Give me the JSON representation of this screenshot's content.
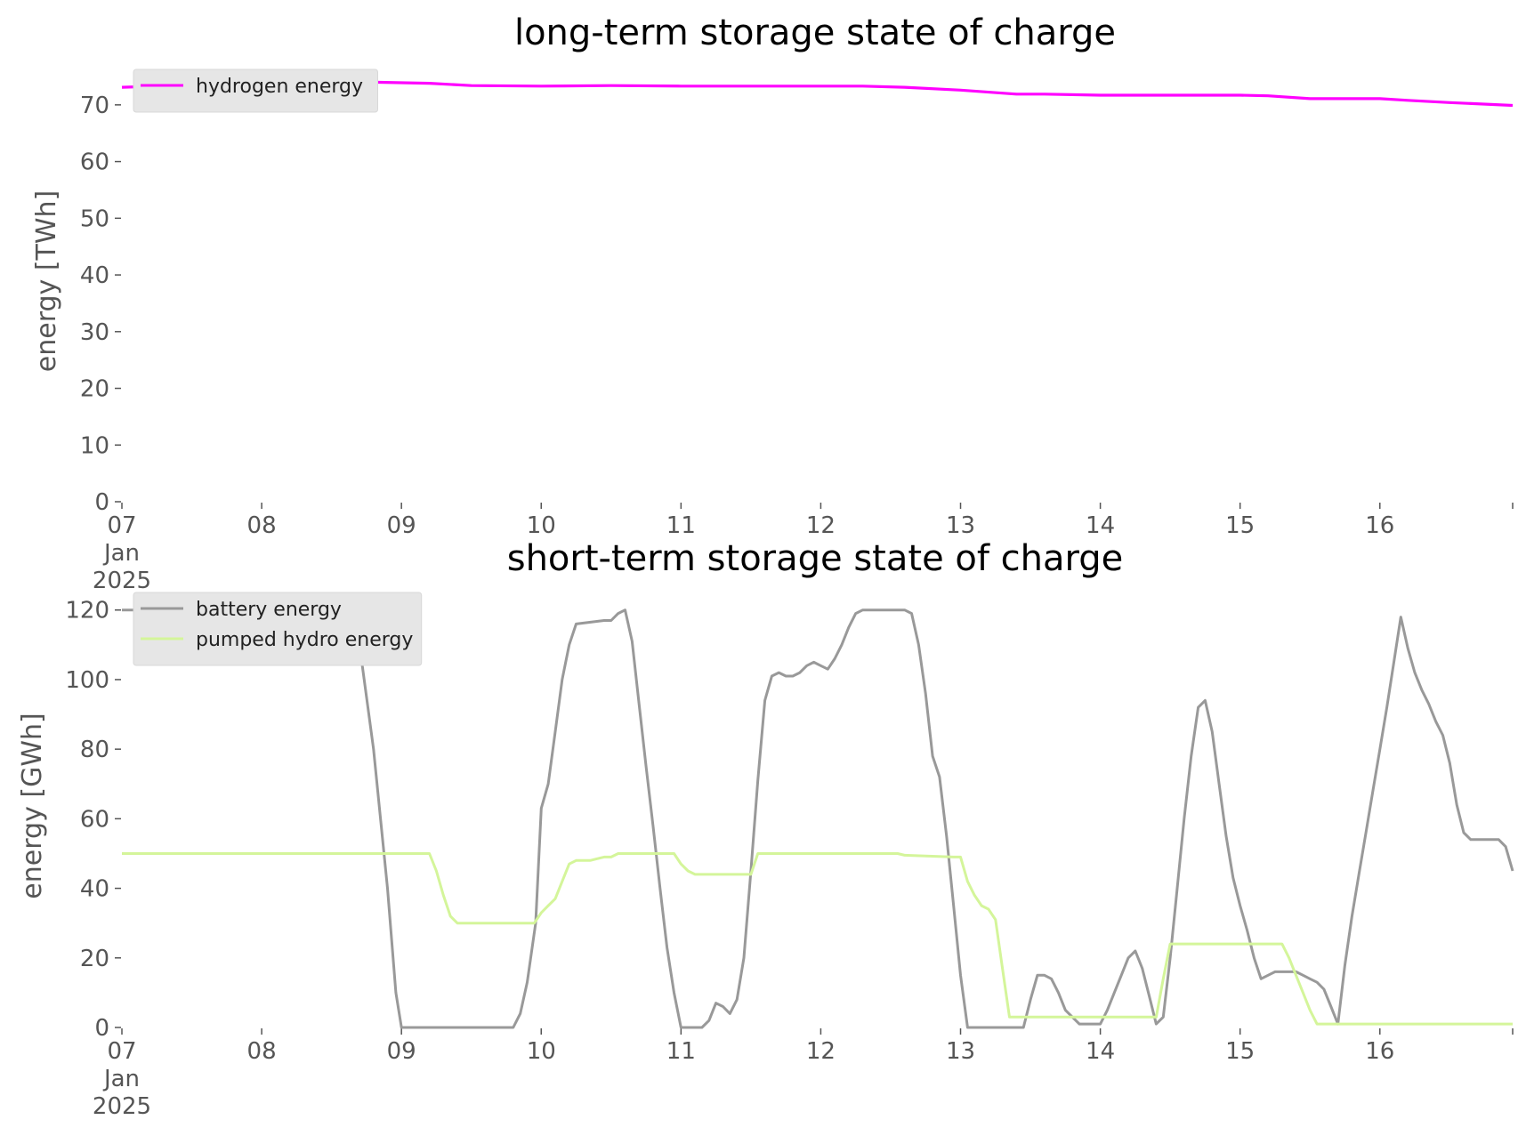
{
  "chart_data": [
    {
      "type": "line",
      "title": "long-term storage state of charge",
      "xlabel": "",
      "ylabel": "energy [TWh]",
      "x_tick_labels": [
        "07",
        "08",
        "09",
        "10",
        "11",
        "12",
        "13",
        "14",
        "15",
        "16"
      ],
      "x_tick_sublabel": [
        "Jan",
        "2025"
      ],
      "x_range": [
        7,
        16.95
      ],
      "ylim": [
        0,
        75
      ],
      "y_ticks": [
        0,
        10,
        20,
        30,
        40,
        50,
        60,
        70
      ],
      "grid": false,
      "legend_position": "upper left",
      "series": [
        {
          "name": "hydrogen energy",
          "color": "#ff00ff",
          "points": [
            [
              7.0,
              73.1
            ],
            [
              7.5,
              73.5
            ],
            [
              8.0,
              73.8
            ],
            [
              8.5,
              74.0
            ],
            [
              8.8,
              74.0
            ],
            [
              9.2,
              73.8
            ],
            [
              9.5,
              73.4
            ],
            [
              10.0,
              73.3
            ],
            [
              10.5,
              73.4
            ],
            [
              11.0,
              73.3
            ],
            [
              11.5,
              73.3
            ],
            [
              12.0,
              73.3
            ],
            [
              12.3,
              73.3
            ],
            [
              12.6,
              73.1
            ],
            [
              13.0,
              72.6
            ],
            [
              13.4,
              71.9
            ],
            [
              13.6,
              71.9
            ],
            [
              14.0,
              71.7
            ],
            [
              14.5,
              71.7
            ],
            [
              15.0,
              71.7
            ],
            [
              15.2,
              71.6
            ],
            [
              15.5,
              71.1
            ],
            [
              16.0,
              71.1
            ],
            [
              16.2,
              70.8
            ],
            [
              16.5,
              70.4
            ],
            [
              16.95,
              69.9
            ]
          ]
        }
      ]
    },
    {
      "type": "line",
      "title": "short-term storage state of charge",
      "xlabel": "",
      "ylabel": "energy [GWh]",
      "x_tick_labels": [
        "07",
        "08",
        "09",
        "10",
        "11",
        "12",
        "13",
        "14",
        "15",
        "16"
      ],
      "x_tick_sublabel": [
        "Jan",
        "2025"
      ],
      "x_range": [
        7,
        16.95
      ],
      "ylim": [
        0,
        123
      ],
      "y_ticks": [
        0,
        20,
        40,
        60,
        80,
        100,
        120
      ],
      "grid": false,
      "legend_position": "upper left",
      "series": [
        {
          "name": "battery energy",
          "color": "#999999",
          "points": [
            [
              7.0,
              120
            ],
            [
              8.6,
              120
            ],
            [
              8.7,
              110
            ],
            [
              8.8,
              80
            ],
            [
              8.9,
              40
            ],
            [
              8.96,
              10
            ],
            [
              9.0,
              0
            ],
            [
              9.8,
              0
            ],
            [
              9.85,
              4
            ],
            [
              9.9,
              13
            ],
            [
              9.96,
              30
            ],
            [
              10.0,
              63
            ],
            [
              10.05,
              70
            ],
            [
              10.1,
              85
            ],
            [
              10.15,
              100
            ],
            [
              10.2,
              110
            ],
            [
              10.25,
              116
            ],
            [
              10.45,
              117
            ],
            [
              10.5,
              117
            ],
            [
              10.55,
              119
            ],
            [
              10.6,
              120
            ],
            [
              10.65,
              111
            ],
            [
              10.7,
              93
            ],
            [
              10.75,
              75
            ],
            [
              10.8,
              58
            ],
            [
              10.85,
              40
            ],
            [
              10.9,
              23
            ],
            [
              10.95,
              10
            ],
            [
              11.0,
              0
            ],
            [
              11.15,
              0
            ],
            [
              11.2,
              2
            ],
            [
              11.25,
              7
            ],
            [
              11.3,
              6
            ],
            [
              11.35,
              4
            ],
            [
              11.4,
              8
            ],
            [
              11.45,
              20
            ],
            [
              11.5,
              45
            ],
            [
              11.55,
              71
            ],
            [
              11.6,
              94
            ],
            [
              11.65,
              101
            ],
            [
              11.7,
              102
            ],
            [
              11.75,
              101
            ],
            [
              11.8,
              101
            ],
            [
              11.85,
              102
            ],
            [
              11.9,
              104
            ],
            [
              11.95,
              105
            ],
            [
              12.0,
              104
            ],
            [
              12.05,
              103
            ],
            [
              12.1,
              106
            ],
            [
              12.15,
              110
            ],
            [
              12.2,
              115
            ],
            [
              12.25,
              119
            ],
            [
              12.3,
              120
            ],
            [
              12.6,
              120
            ],
            [
              12.65,
              119
            ],
            [
              12.7,
              110
            ],
            [
              12.75,
              96
            ],
            [
              12.8,
              78
            ],
            [
              12.85,
              72
            ],
            [
              12.9,
              55
            ],
            [
              12.95,
              35
            ],
            [
              13.0,
              15
            ],
            [
              13.05,
              0
            ],
            [
              13.45,
              0
            ],
            [
              13.5,
              8
            ],
            [
              13.55,
              15
            ],
            [
              13.6,
              15
            ],
            [
              13.65,
              14
            ],
            [
              13.7,
              10
            ],
            [
              13.75,
              5
            ],
            [
              13.8,
              3
            ],
            [
              13.85,
              1
            ],
            [
              14.0,
              1
            ],
            [
              14.05,
              5
            ],
            [
              14.1,
              10
            ],
            [
              14.15,
              15
            ],
            [
              14.2,
              20
            ],
            [
              14.25,
              22
            ],
            [
              14.3,
              17
            ],
            [
              14.35,
              9
            ],
            [
              14.4,
              1
            ],
            [
              14.45,
              3
            ],
            [
              14.5,
              20
            ],
            [
              14.55,
              40
            ],
            [
              14.6,
              60
            ],
            [
              14.65,
              78
            ],
            [
              14.7,
              92
            ],
            [
              14.75,
              94
            ],
            [
              14.8,
              85
            ],
            [
              14.85,
              70
            ],
            [
              14.9,
              55
            ],
            [
              14.95,
              43
            ],
            [
              15.0,
              35
            ],
            [
              15.05,
              28
            ],
            [
              15.1,
              20
            ],
            [
              15.15,
              14
            ],
            [
              15.2,
              15
            ],
            [
              15.25,
              16
            ],
            [
              15.4,
              16
            ],
            [
              15.45,
              15
            ],
            [
              15.5,
              14
            ],
            [
              15.55,
              13
            ],
            [
              15.6,
              11
            ],
            [
              15.65,
              6
            ],
            [
              15.7,
              1
            ],
            [
              15.75,
              18
            ],
            [
              15.8,
              32
            ],
            [
              15.85,
              44
            ],
            [
              15.9,
              56
            ],
            [
              15.95,
              68
            ],
            [
              16.0,
              80
            ],
            [
              16.05,
              92
            ],
            [
              16.1,
              105
            ],
            [
              16.15,
              118
            ],
            [
              16.2,
              109
            ],
            [
              16.25,
              102
            ],
            [
              16.3,
              97
            ],
            [
              16.35,
              93
            ],
            [
              16.4,
              88
            ],
            [
              16.45,
              84
            ],
            [
              16.5,
              76
            ],
            [
              16.55,
              64
            ],
            [
              16.6,
              56
            ],
            [
              16.65,
              54
            ],
            [
              16.85,
              54
            ],
            [
              16.9,
              52
            ],
            [
              16.95,
              45
            ]
          ]
        },
        {
          "name": "pumped hydro energy",
          "color": "#d4f59a",
          "points": [
            [
              7.0,
              50
            ],
            [
              9.2,
              50
            ],
            [
              9.25,
              45
            ],
            [
              9.3,
              38
            ],
            [
              9.35,
              32
            ],
            [
              9.4,
              30
            ],
            [
              9.95,
              30
            ],
            [
              10.0,
              33
            ],
            [
              10.05,
              35
            ],
            [
              10.1,
              37
            ],
            [
              10.15,
              42
            ],
            [
              10.2,
              47
            ],
            [
              10.25,
              48
            ],
            [
              10.35,
              48
            ],
            [
              10.4,
              48.5
            ],
            [
              10.45,
              49
            ],
            [
              10.5,
              49
            ],
            [
              10.55,
              50
            ],
            [
              10.95,
              50
            ],
            [
              11.0,
              47
            ],
            [
              11.05,
              45
            ],
            [
              11.1,
              44
            ],
            [
              11.15,
              44
            ],
            [
              11.45,
              44
            ],
            [
              11.5,
              44
            ],
            [
              11.55,
              50
            ],
            [
              12.55,
              50
            ],
            [
              12.6,
              49.5
            ],
            [
              12.95,
              49
            ],
            [
              13.0,
              49
            ],
            [
              13.05,
              42
            ],
            [
              13.1,
              38
            ],
            [
              13.15,
              35
            ],
            [
              13.2,
              34
            ],
            [
              13.25,
              31
            ],
            [
              13.3,
              17
            ],
            [
              13.35,
              3
            ],
            [
              13.4,
              3
            ],
            [
              14.35,
              3
            ],
            [
              14.4,
              3
            ],
            [
              14.45,
              14
            ],
            [
              14.5,
              24
            ],
            [
              14.55,
              24
            ],
            [
              15.25,
              24
            ],
            [
              15.3,
              24
            ],
            [
              15.35,
              20
            ],
            [
              15.4,
              15
            ],
            [
              15.45,
              10
            ],
            [
              15.5,
              5
            ],
            [
              15.55,
              1
            ],
            [
              15.6,
              1
            ],
            [
              16.95,
              1
            ]
          ]
        }
      ]
    }
  ]
}
